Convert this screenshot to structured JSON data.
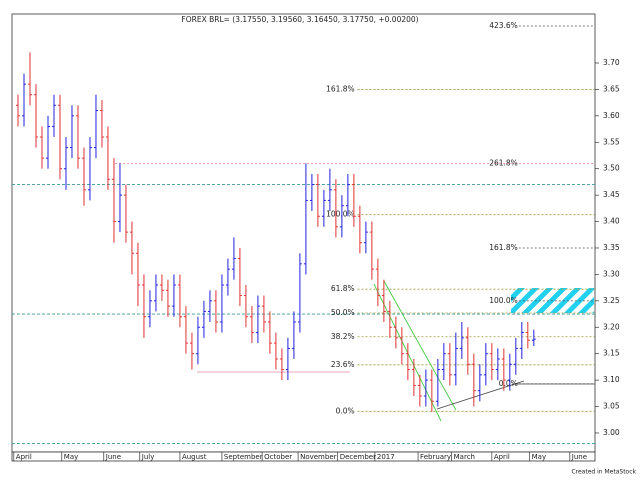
{
  "chart_data": {
    "type": "ohlc",
    "title": "FOREX BRL= (3.17550, 3.19560, 3.16450, 3.17750, +0.00200)",
    "footer": "Created in MetaStock",
    "up_color": "#2020e0",
    "down_color": "#e03030",
    "xlim": [
      -1,
      96.2
    ],
    "ylim": [
      2.964,
      3.7927
    ],
    "xticks": [
      {
        "value": -0.7,
        "label": "April"
      },
      {
        "value": 7.3,
        "label": "May"
      },
      {
        "value": 14.3,
        "label": "June"
      },
      {
        "value": 20.3,
        "label": "July"
      },
      {
        "value": 27,
        "label": "August"
      },
      {
        "value": 34,
        "label": "September"
      },
      {
        "value": 40.7,
        "label": "October"
      },
      {
        "value": 46.7,
        "label": "November"
      },
      {
        "value": 53.3,
        "label": "December"
      },
      {
        "value": 59.5,
        "label": "2017"
      },
      {
        "value": 66.7,
        "label": "February"
      },
      {
        "value": 72.3,
        "label": "March"
      },
      {
        "value": 79,
        "label": "April"
      },
      {
        "value": 85.3,
        "label": "May"
      },
      {
        "value": 92,
        "label": "June"
      }
    ],
    "yticks": [
      {
        "value": 3,
        "label": "3.00"
      },
      3.05,
      {
        "value": 3.1,
        "label": "3.10"
      },
      3.15,
      {
        "value": 3.2,
        "label": "3.20"
      },
      3.25,
      {
        "value": 3.3,
        "label": "3.30"
      },
      3.35,
      {
        "value": 3.4,
        "label": "3.40"
      },
      3.45,
      {
        "value": 3.5,
        "label": "3.50"
      },
      3.55,
      {
        "value": 3.6,
        "label": "3.60"
      },
      3.65,
      {
        "value": 3.7,
        "label": "3.70"
      }
    ],
    "open": [
      3.62,
      3.6,
      3.66,
      3.64,
      3.56,
      3.52,
      3.58,
      3.62,
      3.5,
      3.54,
      3.6,
      3.52,
      3.46,
      3.54,
      3.61,
      3.56,
      3.48,
      3.4,
      3.45,
      3.38,
      3.34,
      3.28,
      3.22,
      3.25,
      3.28,
      3.27,
      3.24,
      3.28,
      3.22,
      3.17,
      3.15,
      3.2,
      3.23,
      3.25,
      3.21,
      3.28,
      3.31,
      3.33,
      3.26,
      3.22,
      3.19,
      3.24,
      3.21,
      3.17,
      3.14,
      3.12,
      3.16,
      3.21,
      3.32,
      3.44,
      3.47,
      3.41,
      3.44,
      3.46,
      3.39,
      3.43,
      3.47,
      3.41,
      3.36,
      3.38,
      3.31,
      3.26,
      3.23,
      3.2,
      3.18,
      3.15,
      3.12,
      3.09,
      3.07,
      3.1,
      3.06,
      3.12,
      3.15,
      3.11,
      3.16,
      3.18,
      3.13,
      3.08,
      3.11,
      3.15,
      3.12,
      3.14,
      3.1,
      3.13,
      3.16,
      3.19,
      3.1755
    ],
    "high": [
      3.64,
      3.68,
      3.72,
      3.66,
      3.58,
      3.6,
      3.64,
      3.64,
      3.56,
      3.62,
      3.62,
      3.54,
      3.56,
      3.64,
      3.63,
      3.58,
      3.52,
      3.51,
      3.47,
      3.4,
      3.36,
      3.3,
      3.27,
      3.3,
      3.3,
      3.29,
      3.3,
      3.3,
      3.24,
      3.19,
      3.22,
      3.25,
      3.27,
      3.27,
      3.3,
      3.33,
      3.37,
      3.35,
      3.28,
      3.24,
      3.26,
      3.26,
      3.23,
      3.19,
      3.16,
      3.18,
      3.23,
      3.34,
      3.51,
      3.49,
      3.49,
      3.46,
      3.5,
      3.48,
      3.45,
      3.49,
      3.49,
      3.43,
      3.4,
      3.4,
      3.33,
      3.29,
      3.25,
      3.22,
      3.2,
      3.17,
      3.14,
      3.11,
      3.12,
      3.12,
      3.14,
      3.17,
      3.17,
      3.19,
      3.21,
      3.2,
      3.15,
      3.13,
      3.17,
      3.17,
      3.16,
      3.16,
      3.15,
      3.18,
      3.21,
      3.21,
      3.1956
    ],
    "low": [
      3.58,
      3.58,
      3.62,
      3.54,
      3.5,
      3.5,
      3.56,
      3.48,
      3.46,
      3.52,
      3.5,
      3.43,
      3.44,
      3.52,
      3.54,
      3.46,
      3.36,
      3.38,
      3.36,
      3.3,
      3.24,
      3.18,
      3.2,
      3.23,
      3.25,
      3.22,
      3.22,
      3.2,
      3.15,
      3.12,
      3.13,
      3.18,
      3.21,
      3.19,
      3.19,
      3.26,
      3.29,
      3.24,
      3.2,
      3.17,
      3.17,
      3.19,
      3.15,
      3.12,
      3.1,
      3.1,
      3.14,
      3.19,
      3.3,
      3.42,
      3.39,
      3.39,
      3.42,
      3.37,
      3.37,
      3.41,
      3.39,
      3.34,
      3.34,
      3.29,
      3.24,
      3.21,
      3.18,
      3.16,
      3.13,
      3.1,
      3.07,
      3.05,
      3.05,
      3.04,
      3.05,
      3.1,
      3.09,
      3.09,
      3.14,
      3.11,
      3.05,
      3.06,
      3.09,
      3.1,
      3.1,
      3.08,
      3.08,
      3.11,
      3.14,
      3.16,
      3.1645
    ],
    "close": [
      3.6,
      3.66,
      3.64,
      3.56,
      3.52,
      3.58,
      3.62,
      3.5,
      3.54,
      3.6,
      3.52,
      3.46,
      3.54,
      3.61,
      3.56,
      3.48,
      3.4,
      3.45,
      3.38,
      3.34,
      3.28,
      3.22,
      3.25,
      3.28,
      3.27,
      3.24,
      3.28,
      3.22,
      3.17,
      3.15,
      3.2,
      3.23,
      3.25,
      3.21,
      3.28,
      3.31,
      3.33,
      3.26,
      3.22,
      3.19,
      3.24,
      3.21,
      3.17,
      3.14,
      3.12,
      3.16,
      3.21,
      3.32,
      3.44,
      3.47,
      3.41,
      3.44,
      3.46,
      3.39,
      3.43,
      3.47,
      3.41,
      3.36,
      3.38,
      3.31,
      3.26,
      3.23,
      3.2,
      3.18,
      3.15,
      3.12,
      3.09,
      3.07,
      3.1,
      3.06,
      3.12,
      3.15,
      3.11,
      3.16,
      3.18,
      3.13,
      3.08,
      3.11,
      3.15,
      3.12,
      3.14,
      3.1,
      3.13,
      3.16,
      3.19,
      3.1755,
      3.1775
    ],
    "reference_lines": [
      3.47,
      3.225,
      2.98
    ],
    "reference_color": "#3a9a9a",
    "fib_sets": [
      {
        "color": "#9a9a3a",
        "label_at": 56.3,
        "levels": [
          {
            "label": "0.0%",
            "value": 3.041,
            "from_x": 56.6
          },
          {
            "label": "23.6%",
            "value": 3.129,
            "from_x": 56.6
          },
          {
            "label": "38.2%",
            "value": 3.182,
            "from_x": 56.6
          },
          {
            "label": "50.0%",
            "value": 3.227,
            "from_x": 56.6
          },
          {
            "label": "61.8%",
            "value": 3.272,
            "from_x": 56.6
          },
          {
            "label": "100.0%",
            "value": 3.413,
            "from_x": 56.6
          },
          {
            "label": "161.8%",
            "value": 3.65,
            "from_x": 56.6
          }
        ]
      },
      {
        "color": "#555555",
        "label_at": 83.5,
        "levels": [
          {
            "label": "0.0%",
            "value": 3.093,
            "from_x": 83.5
          },
          {
            "label": "100.0%",
            "value": 3.25,
            "from_x": 83.5
          },
          {
            "label": "161.8%",
            "value": 3.35,
            "from_x": 83.5
          },
          {
            "label": "261.8%",
            "value": 3.51,
            "from_x": 16.2
          },
          {
            "label": "423.6%",
            "value": 3.77,
            "from_x": 83.5
          }
        ]
      }
    ]
  }
}
